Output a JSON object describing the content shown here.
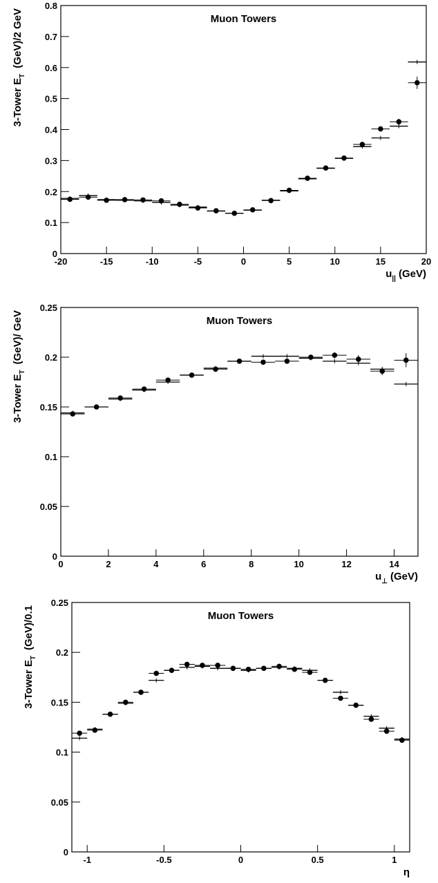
{
  "chart_data": [
    {
      "type": "scatter",
      "title": "Muon Towers",
      "xlabel": {
        "text": "u",
        "sub": "||",
        "unit": "(GeV)"
      },
      "ylabel": {
        "text": "3-Tower E",
        "sub": "T",
        "unit": "(GeV)/2 GeV"
      },
      "x": [
        -19,
        -17,
        -15,
        -13,
        -11,
        -9,
        -7,
        -5,
        -3,
        -1,
        1,
        3,
        5,
        7,
        9,
        11,
        13,
        15,
        17,
        19
      ],
      "xlim": [
        -20,
        20
      ],
      "xticks": [
        -20,
        -15,
        -10,
        -5,
        0,
        5,
        10,
        15,
        20
      ],
      "ylim": [
        0,
        0.8
      ],
      "yticks": [
        0,
        0.1,
        0.2,
        0.3,
        0.4,
        0.5,
        0.6,
        0.7,
        0.8
      ],
      "series": [
        {
          "color": "#000000",
          "marker": "circle",
          "values": [
            0.175,
            0.182,
            0.172,
            0.174,
            0.173,
            0.17,
            0.159,
            0.147,
            0.138,
            0.13,
            0.141,
            0.171,
            0.204,
            0.243,
            0.276,
            0.308,
            0.352,
            0.402,
            0.425,
            0.551
          ],
          "errors": [
            0.003,
            0.003,
            0.003,
            0.003,
            0.003,
            0.003,
            0.003,
            0.003,
            0.003,
            0.003,
            0.003,
            0.003,
            0.003,
            0.003,
            0.003,
            0.003,
            0.004,
            0.005,
            0.01,
            0.02
          ]
        },
        {
          "color": "#000000",
          "marker": "cross",
          "values": [
            0.178,
            0.187,
            0.174,
            0.172,
            0.17,
            0.165,
            0.156,
            0.15,
            0.137,
            0.13,
            0.14,
            0.172,
            0.202,
            0.241,
            0.275,
            0.307,
            0.345,
            0.373,
            0.411,
            0.618
          ]
        }
      ]
    },
    {
      "type": "scatter",
      "title": "Muon Towers",
      "xlabel": {
        "text": "u",
        "sub": "⊥",
        "unit": "(GeV)"
      },
      "ylabel": {
        "text": "3-Tower E",
        "sub": "T",
        "unit": "(GeV)/ GeV"
      },
      "x": [
        0.5,
        1.5,
        2.5,
        3.5,
        4.5,
        5.5,
        6.5,
        7.5,
        8.5,
        9.5,
        10.5,
        11.5,
        12.5,
        13.5,
        14.5
      ],
      "xlim": [
        0,
        15
      ],
      "xticks": [
        0,
        2,
        4,
        6,
        8,
        10,
        12,
        14
      ],
      "ylim": [
        0,
        0.25
      ],
      "yticks": [
        0,
        0.05,
        0.1,
        0.15,
        0.2,
        0.25
      ],
      "series": [
        {
          "color": "#000000",
          "marker": "circle",
          "values": [
            0.143,
            0.15,
            0.159,
            0.168,
            0.177,
            0.182,
            0.188,
            0.196,
            0.195,
            0.196,
            0.2,
            0.202,
            0.198,
            0.186,
            0.197
          ],
          "errors": [
            0.001,
            0.001,
            0.001,
            0.001,
            0.001,
            0.001,
            0.0015,
            0.0015,
            0.002,
            0.002,
            0.002,
            0.003,
            0.004,
            0.004,
            0.007
          ]
        },
        {
          "color": "#000000",
          "marker": "cross",
          "values": [
            0.144,
            0.15,
            0.158,
            0.167,
            0.175,
            0.182,
            0.189,
            0.196,
            0.201,
            0.201,
            0.199,
            0.196,
            0.194,
            0.188,
            0.173
          ]
        }
      ]
    },
    {
      "type": "scatter",
      "title": "Muon Towers",
      "xlabel": {
        "text": "η"
      },
      "ylabel": {
        "text": "3-Tower E",
        "sub": "T",
        "unit": "(GeV)/0.1"
      },
      "x": [
        -1.05,
        -0.95,
        -0.85,
        -0.75,
        -0.65,
        -0.55,
        -0.45,
        -0.35,
        -0.25,
        -0.15,
        -0.05,
        0.05,
        0.15,
        0.25,
        0.35,
        0.45,
        0.55,
        0.65,
        0.75,
        0.85,
        0.95,
        1.05
      ],
      "xlim": [
        -1.1,
        1.1
      ],
      "xticks": [
        -1,
        -0.5,
        0,
        0.5,
        1
      ],
      "ylim": [
        0,
        0.25
      ],
      "yticks": [
        0,
        0.05,
        0.1,
        0.15,
        0.2,
        0.25
      ],
      "series": [
        {
          "color": "#000000",
          "marker": "circle",
          "values": [
            0.119,
            0.122,
            0.138,
            0.15,
            0.16,
            0.179,
            0.182,
            0.188,
            0.187,
            0.187,
            0.184,
            0.183,
            0.184,
            0.186,
            0.183,
            0.18,
            0.172,
            0.154,
            0.147,
            0.133,
            0.121,
            0.112
          ],
          "errors": [
            0.002,
            0.002,
            0.002,
            0.002,
            0.002,
            0.002,
            0.002,
            0.002,
            0.002,
            0.002,
            0.002,
            0.002,
            0.002,
            0.002,
            0.002,
            0.002,
            0.002,
            0.002,
            0.002,
            0.002,
            0.002,
            0.002
          ]
        },
        {
          "color": "#000000",
          "marker": "cross",
          "values": [
            0.114,
            0.123,
            0.138,
            0.149,
            0.16,
            0.172,
            0.182,
            0.185,
            0.186,
            0.184,
            0.184,
            0.182,
            0.184,
            0.185,
            0.184,
            0.182,
            0.172,
            0.16,
            0.147,
            0.136,
            0.124,
            0.113
          ]
        }
      ]
    }
  ]
}
